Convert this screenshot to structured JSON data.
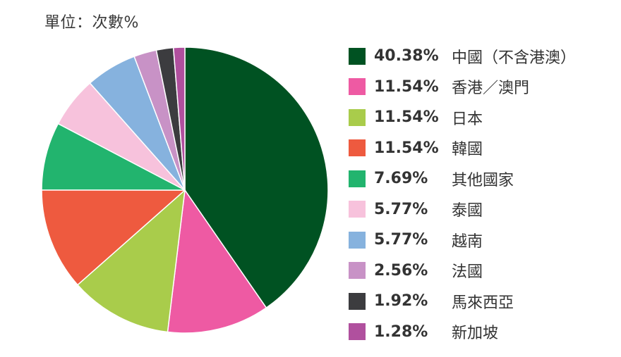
{
  "unit_label": "單位：次數%",
  "chart_data": {
    "type": "pie",
    "categories": [
      "中國（不含港澳）",
      "香港／澳門",
      "日本",
      "韓國",
      "其他國家",
      "泰國",
      "越南",
      "法國",
      "馬來西亞",
      "新加坡"
    ],
    "values": [
      40.38,
      11.54,
      11.54,
      11.54,
      7.69,
      5.77,
      5.77,
      2.56,
      1.92,
      1.28
    ],
    "value_labels": [
      "40.38%",
      "11.54%",
      "11.54%",
      "11.54%",
      "7.69%",
      "5.77%",
      "5.77%",
      "2.56%",
      "1.92%",
      "1.28%"
    ],
    "colors": [
      "#005222",
      "#ee5aa3",
      "#a9cc4b",
      "#ee5a3f",
      "#22b46e",
      "#f7c2dc",
      "#86b2de",
      "#c892c6",
      "#3c3c3f",
      "#b0509e"
    ],
    "start_angle": "top (12 o'clock), clockwise",
    "legend_position": "right"
  }
}
